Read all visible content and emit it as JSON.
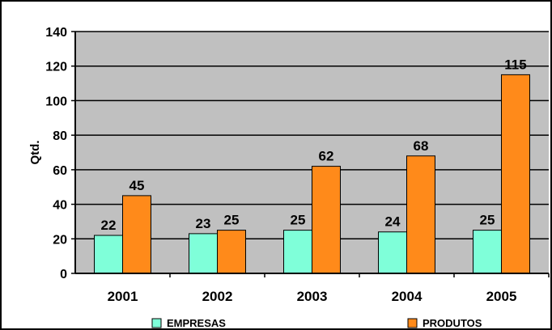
{
  "chart_data": {
    "type": "bar",
    "title": "",
    "xlabel": "",
    "ylabel": "Qtd.",
    "categories": [
      "2001",
      "2002",
      "2003",
      "2004",
      "2005"
    ],
    "series": [
      {
        "name": "EMPRESAS",
        "values": [
          22,
          23,
          25,
          24,
          25
        ],
        "color": "#7FFFD9"
      },
      {
        "name": "PRODUTOS",
        "values": [
          45,
          25,
          62,
          68,
          115
        ],
        "color": "#FF8A1A"
      }
    ],
    "y_ticks": [
      0,
      20,
      40,
      60,
      80,
      100,
      120,
      140
    ],
    "ylim": [
      0,
      140
    ],
    "grid": true,
    "plot_background": "#C0C0C0",
    "legend_position": "bottom"
  }
}
